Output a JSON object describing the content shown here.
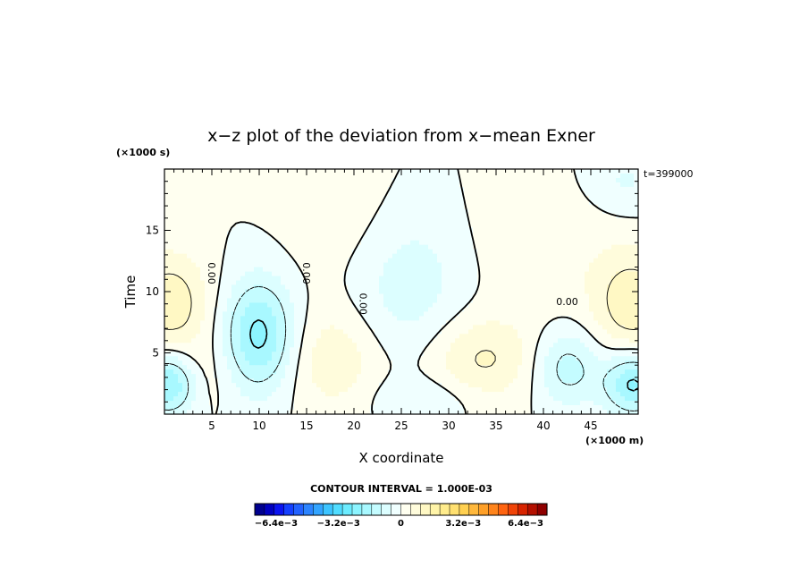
{
  "chart_data": {
    "type": "heatmap",
    "subtype": "filled-contour",
    "title": "x−z plot of the deviation from x−mean Exner",
    "xlabel": "X coordinate",
    "ylabel": "Time",
    "x_unit_label": "(×1000 m)",
    "y_unit_label": "(×1000 s)",
    "time_label": "t=399000",
    "xlim": [
      0,
      50
    ],
    "ylim": [
      0,
      20
    ],
    "x_ticks": [
      5,
      10,
      15,
      20,
      25,
      30,
      35,
      40,
      45
    ],
    "y_ticks": [
      5,
      10,
      15
    ],
    "grid": false,
    "contour_interval_text": "CONTOUR INTERVAL = 1.000E-03",
    "contour_interval": 0.001,
    "zero_contour_label": "0.00",
    "colorbar": {
      "min": -0.0075,
      "max": 0.0075,
      "step": 0.0005,
      "tick_labels": [
        "−6.4e−3",
        "−3.2e−3",
        "0",
        "3.2e−3",
        "6.4e−3"
      ],
      "tick_values": [
        -0.0064,
        -0.0032,
        0,
        0.0032,
        0.0064
      ],
      "colors_neg": [
        "#00008f",
        "#0000c0",
        "#0a14f0",
        "#1440ff",
        "#2262ff",
        "#2c84ff",
        "#32a4ff",
        "#3cc4ff",
        "#50dcff",
        "#6cecff",
        "#8cf4ff",
        "#a8f8ff",
        "#c4fcff",
        "#dcfeff",
        "#f0ffff"
      ],
      "colors_pos": [
        "#fffff0",
        "#fffcdc",
        "#fff8c4",
        "#fff4a8",
        "#ffec8c",
        "#ffe070",
        "#ffd050",
        "#ffb83c",
        "#ffa028",
        "#ff841c",
        "#ff6410",
        "#f04408",
        "#d82400",
        "#b41000",
        "#8f0000"
      ]
    },
    "field_features": [
      {
        "x": 10,
        "y": 6.5,
        "amplitude": -0.0022,
        "sigma_x": 2.6,
        "sigma_y": 3.2
      },
      {
        "x": 0.5,
        "y": 2.5,
        "amplitude": -0.0022,
        "sigma_x": 2.2,
        "sigma_y": 1.8
      },
      {
        "x": 49.5,
        "y": 2.5,
        "amplitude": -0.0022,
        "sigma_x": 2.2,
        "sigma_y": 1.8
      },
      {
        "x": 42.5,
        "y": 3.8,
        "amplitude": -0.0013,
        "sigma_x": 2.4,
        "sigma_y": 2.2
      },
      {
        "x": 25.5,
        "y": 11,
        "amplitude": -0.0009,
        "sigma_x": 4.5,
        "sigma_y": 4.5
      },
      {
        "x": 27.5,
        "y": 1.2,
        "amplitude": -0.0005,
        "sigma_x": 4,
        "sigma_y": 1.3
      },
      {
        "x": 48.5,
        "y": 19,
        "amplitude": -0.0006,
        "sigma_x": 3,
        "sigma_y": 2
      },
      {
        "x": 0.5,
        "y": 9,
        "amplitude": 0.0014,
        "sigma_x": 3,
        "sigma_y": 3
      },
      {
        "x": 49.5,
        "y": 9,
        "amplitude": 0.0014,
        "sigma_x": 3,
        "sigma_y": 3
      },
      {
        "x": 33.5,
        "y": 4.5,
        "amplitude": 0.0011,
        "sigma_x": 4,
        "sigma_y": 2.5
      },
      {
        "x": 18,
        "y": 4.5,
        "amplitude": 0.0009,
        "sigma_x": 3.5,
        "sigma_y": 3
      },
      {
        "x": 4,
        "y": 3,
        "amplitude": 0.0005,
        "sigma_x": 2,
        "sigma_y": 2
      },
      {
        "x": 20,
        "y": 15,
        "amplitude": 0.0004,
        "sigma_x": 5,
        "sigma_y": 4
      },
      {
        "x": 40,
        "y": 14,
        "amplitude": 0.0004,
        "sigma_x": 6,
        "sigma_y": 4
      }
    ]
  }
}
